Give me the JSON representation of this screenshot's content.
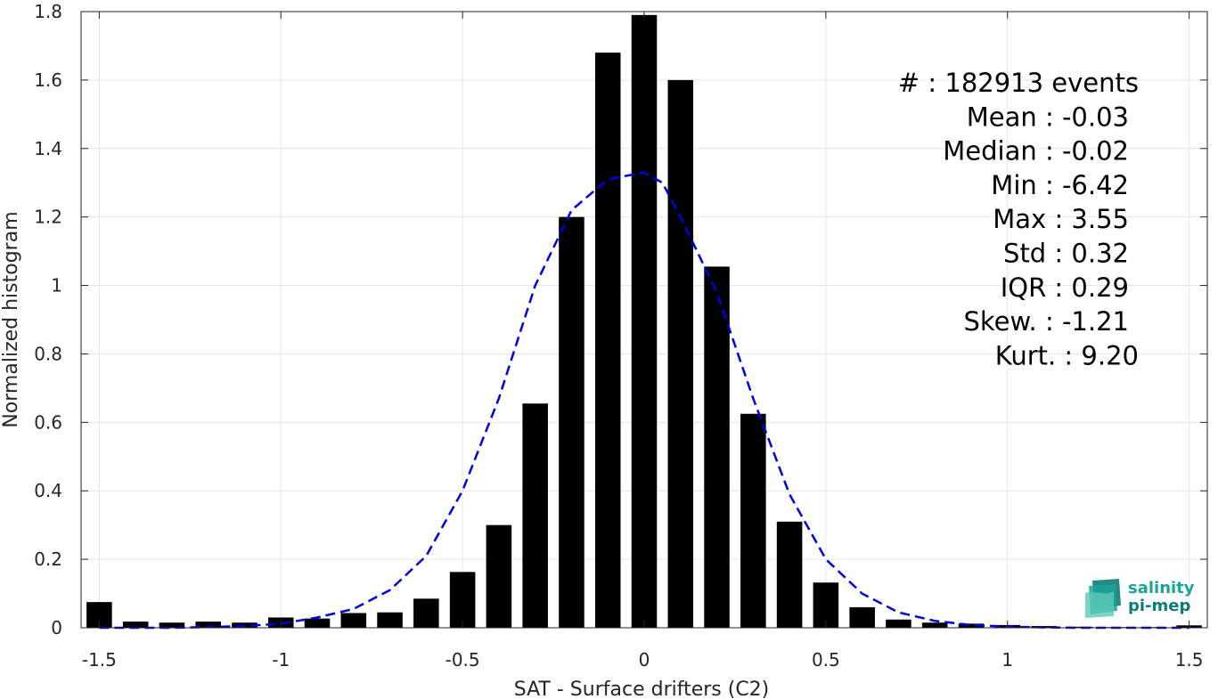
{
  "chart_data": {
    "type": "bar",
    "title": "",
    "xlabel": "SAT - Surface drifters (C2)",
    "ylabel": "Normalized histogram",
    "xlim": [
      -1.55,
      1.55
    ],
    "ylim": [
      0,
      1.8
    ],
    "grid": true,
    "x_ticks": [
      -1.5,
      -1,
      -0.5,
      0,
      0.5,
      1,
      1.5
    ],
    "x_tick_labels": [
      "-1.5",
      "-1",
      "-0.5",
      "0",
      "0.5",
      "1",
      "1.5"
    ],
    "y_ticks": [
      0,
      0.2,
      0.4,
      0.6,
      0.8,
      1,
      1.2,
      1.4,
      1.6,
      1.8
    ],
    "y_tick_labels": [
      "0",
      "0.2",
      "0.4",
      "0.6",
      "0.8",
      "1",
      "1.2",
      "1.4",
      "1.6",
      "1.8"
    ],
    "bin_width": 0.1,
    "bar_centers": [
      -1.5,
      -1.4,
      -1.3,
      -1.2,
      -1.1,
      -1.0,
      -0.9,
      -0.8,
      -0.7,
      -0.6,
      -0.5,
      -0.4,
      -0.3,
      -0.2,
      -0.1,
      0.0,
      0.1,
      0.2,
      0.3,
      0.4,
      0.5,
      0.6,
      0.7,
      0.8,
      0.9,
      1.0,
      1.1,
      1.2,
      1.3,
      1.4,
      1.5
    ],
    "bar_values": [
      0.075,
      0.018,
      0.015,
      0.018,
      0.015,
      0.03,
      0.027,
      0.043,
      0.045,
      0.085,
      0.163,
      0.3,
      0.655,
      1.2,
      1.68,
      1.79,
      1.6,
      1.055,
      0.625,
      0.31,
      0.132,
      0.06,
      0.024,
      0.015,
      0.012,
      0.008,
      0.005,
      0.003,
      0.002,
      0.002,
      0.007
    ],
    "fit_curve": {
      "style": "dashed",
      "color": "#0000dd",
      "x": [
        -1.5,
        -1.4,
        -1.3,
        -1.2,
        -1.1,
        -1.0,
        -0.9,
        -0.8,
        -0.7,
        -0.6,
        -0.5,
        -0.4,
        -0.3,
        -0.2,
        -0.1,
        -0.05,
        0.0,
        0.05,
        0.1,
        0.2,
        0.3,
        0.4,
        0.5,
        0.6,
        0.7,
        0.8,
        0.9,
        1.0,
        1.1,
        1.2,
        1.3,
        1.4,
        1.5
      ],
      "y": [
        0.0,
        0.0,
        0.0,
        0.002,
        0.005,
        0.012,
        0.03,
        0.055,
        0.11,
        0.21,
        0.4,
        0.67,
        1.0,
        1.22,
        1.31,
        1.32,
        1.33,
        1.3,
        1.2,
        0.98,
        0.67,
        0.39,
        0.2,
        0.1,
        0.045,
        0.02,
        0.008,
        0.003,
        0.001,
        0.0,
        0.0,
        0.0,
        0.0
      ]
    },
    "annotations": [
      "#  : 182913 events",
      "Mean : -0.03",
      "Median : -0.02",
      "Min : -6.42",
      "Max : 3.55",
      "Std : 0.32",
      "IQR : 0.29",
      "Skew. : -1.21",
      "Kurt. : 9.20"
    ]
  },
  "logo": {
    "line1": "salinity",
    "line2": "pi-mep",
    "color_primary": "#1aa59a",
    "color_secondary": "#0e7c76"
  },
  "colors": {
    "bar": "#000000",
    "fit": "#0000dd",
    "grid": "#e6e6e6",
    "axis": "#262626"
  }
}
